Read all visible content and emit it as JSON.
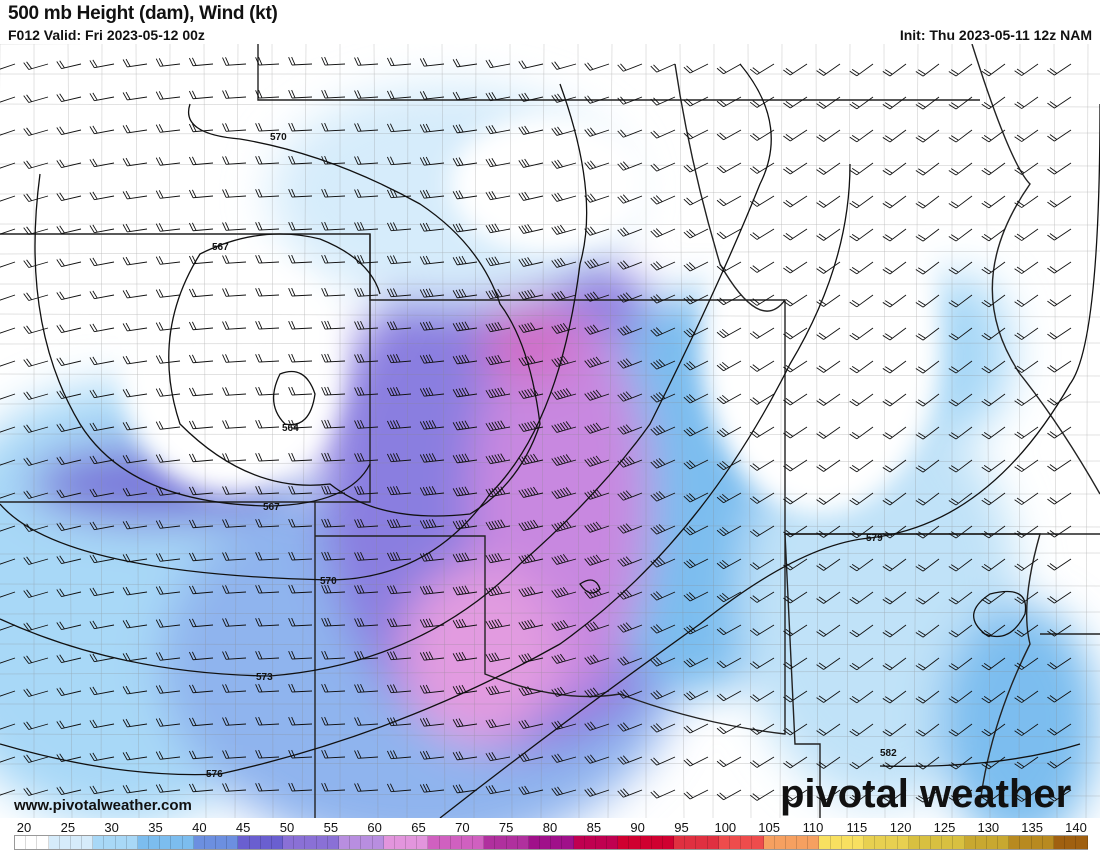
{
  "header": {
    "title": "500 mb Height (dam), Wind (kt)",
    "valid": "F012 Valid: Fri 2023-05-12 00z",
    "init": "Init: Thu 2023-05-11 12z NAM"
  },
  "map": {
    "fields": [
      "500 mb geopotential height contours (dam)",
      "wind speed shading (kt)",
      "wind barbs"
    ],
    "contour_labels": [
      "570",
      "567",
      "564",
      "567",
      "570",
      "573",
      "576",
      "579",
      "582"
    ]
  },
  "branding": {
    "website": "www.pivotalweather.com",
    "logo": "pivotal weather"
  },
  "colorbar": {
    "ticks": [
      "20",
      "25",
      "30",
      "35",
      "40",
      "45",
      "50",
      "55",
      "60",
      "65",
      "70",
      "75",
      "80",
      "85",
      "90",
      "95",
      "100",
      "105",
      "110",
      "115",
      "120",
      "125",
      "130",
      "135",
      "140"
    ],
    "colors": [
      "#ffffff",
      "#d6ecfb",
      "#a8d8f7",
      "#7cbdef",
      "#6c8fe0",
      "#6a5fd0",
      "#8a70d6",
      "#b88ee0",
      "#e295dd",
      "#d060c0",
      "#b0309e",
      "#a0108a",
      "#c00050",
      "#d00030",
      "#e03040",
      "#ee4c4c",
      "#f6a060",
      "#f8e060",
      "#e8d050",
      "#d8c040",
      "#c8a830",
      "#b88a20",
      "#a06010"
    ]
  }
}
